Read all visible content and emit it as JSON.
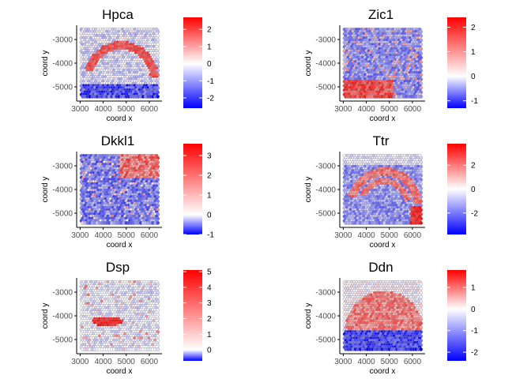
{
  "colors": {
    "low": "#0000ff",
    "mid": "#ffffff",
    "high": "#ff0000",
    "spot_stroke": "#808080",
    "axis": "#000000",
    "tick_text": "#4d4d4d"
  },
  "chart_data": [
    {
      "type": "scatter",
      "title": "Hpca",
      "xlabel": "coord x",
      "ylabel": "coord y",
      "xlim": [
        2850,
        6550
      ],
      "ylim": [
        -5600,
        -2400
      ],
      "xticks": [
        3000,
        4000,
        5000,
        6000
      ],
      "yticks": [
        -3000,
        -4000,
        -5000
      ],
      "legend": {
        "min": -2.6,
        "max": 2.7,
        "ticks": [
          2,
          1,
          0,
          -1,
          -2
        ]
      },
      "pattern": "arc"
    },
    {
      "type": "scatter",
      "title": "Zic1",
      "xlabel": "coord x",
      "ylabel": "coord y",
      "xlim": [
        2850,
        6550
      ],
      "ylim": [
        -5600,
        -2400
      ],
      "xticks": [
        3000,
        4000,
        5000,
        6000
      ],
      "yticks": [
        -3000,
        -4000,
        -5000
      ],
      "legend": {
        "min": -1.3,
        "max": 2.4,
        "ticks": [
          2,
          1,
          0,
          -1
        ]
      },
      "pattern": "bottom-left"
    },
    {
      "type": "scatter",
      "title": "Dkkl1",
      "xlabel": "coord x",
      "ylabel": "coord y",
      "xlim": [
        2850,
        6550
      ],
      "ylim": [
        -5600,
        -2400
      ],
      "xticks": [
        3000,
        4000,
        5000,
        6000
      ],
      "yticks": [
        -3000,
        -4000,
        -5000
      ],
      "legend": {
        "min": -1.0,
        "max": 3.6,
        "ticks": [
          3,
          2,
          1,
          0,
          -1
        ]
      },
      "pattern": "top-right"
    },
    {
      "type": "scatter",
      "title": "Ttr",
      "xlabel": "coord x",
      "ylabel": "coord y",
      "xlim": [
        2850,
        6550
      ],
      "ylim": [
        -5600,
        -2400
      ],
      "xticks": [
        3000,
        4000,
        5000,
        6000
      ],
      "yticks": [
        -3000,
        -4000,
        -5000
      ],
      "legend": {
        "min": -3.8,
        "max": 3.8,
        "ticks": [
          2,
          0,
          -2
        ]
      },
      "pattern": "band"
    },
    {
      "type": "scatter",
      "title": "Dsp",
      "xlabel": "coord x",
      "ylabel": "coord y",
      "xlim": [
        2850,
        6550
      ],
      "ylim": [
        -5600,
        -2400
      ],
      "xticks": [
        3000,
        4000,
        5000,
        6000
      ],
      "yticks": [
        -3000,
        -4000,
        -5000
      ],
      "legend": {
        "min": -0.7,
        "max": 5.1,
        "ticks": [
          5,
          4,
          3,
          2,
          1,
          0
        ]
      },
      "pattern": "blob"
    },
    {
      "type": "scatter",
      "title": "Ddn",
      "xlabel": "coord x",
      "ylabel": "coord y",
      "xlim": [
        2850,
        6550
      ],
      "ylim": [
        -5600,
        -2400
      ],
      "xticks": [
        3000,
        4000,
        5000,
        6000
      ],
      "yticks": [
        -3000,
        -4000,
        -5000
      ],
      "legend": {
        "min": -2.4,
        "max": 1.8,
        "ticks": [
          1,
          0,
          -1,
          -2
        ]
      },
      "pattern": "bottom-low"
    }
  ]
}
